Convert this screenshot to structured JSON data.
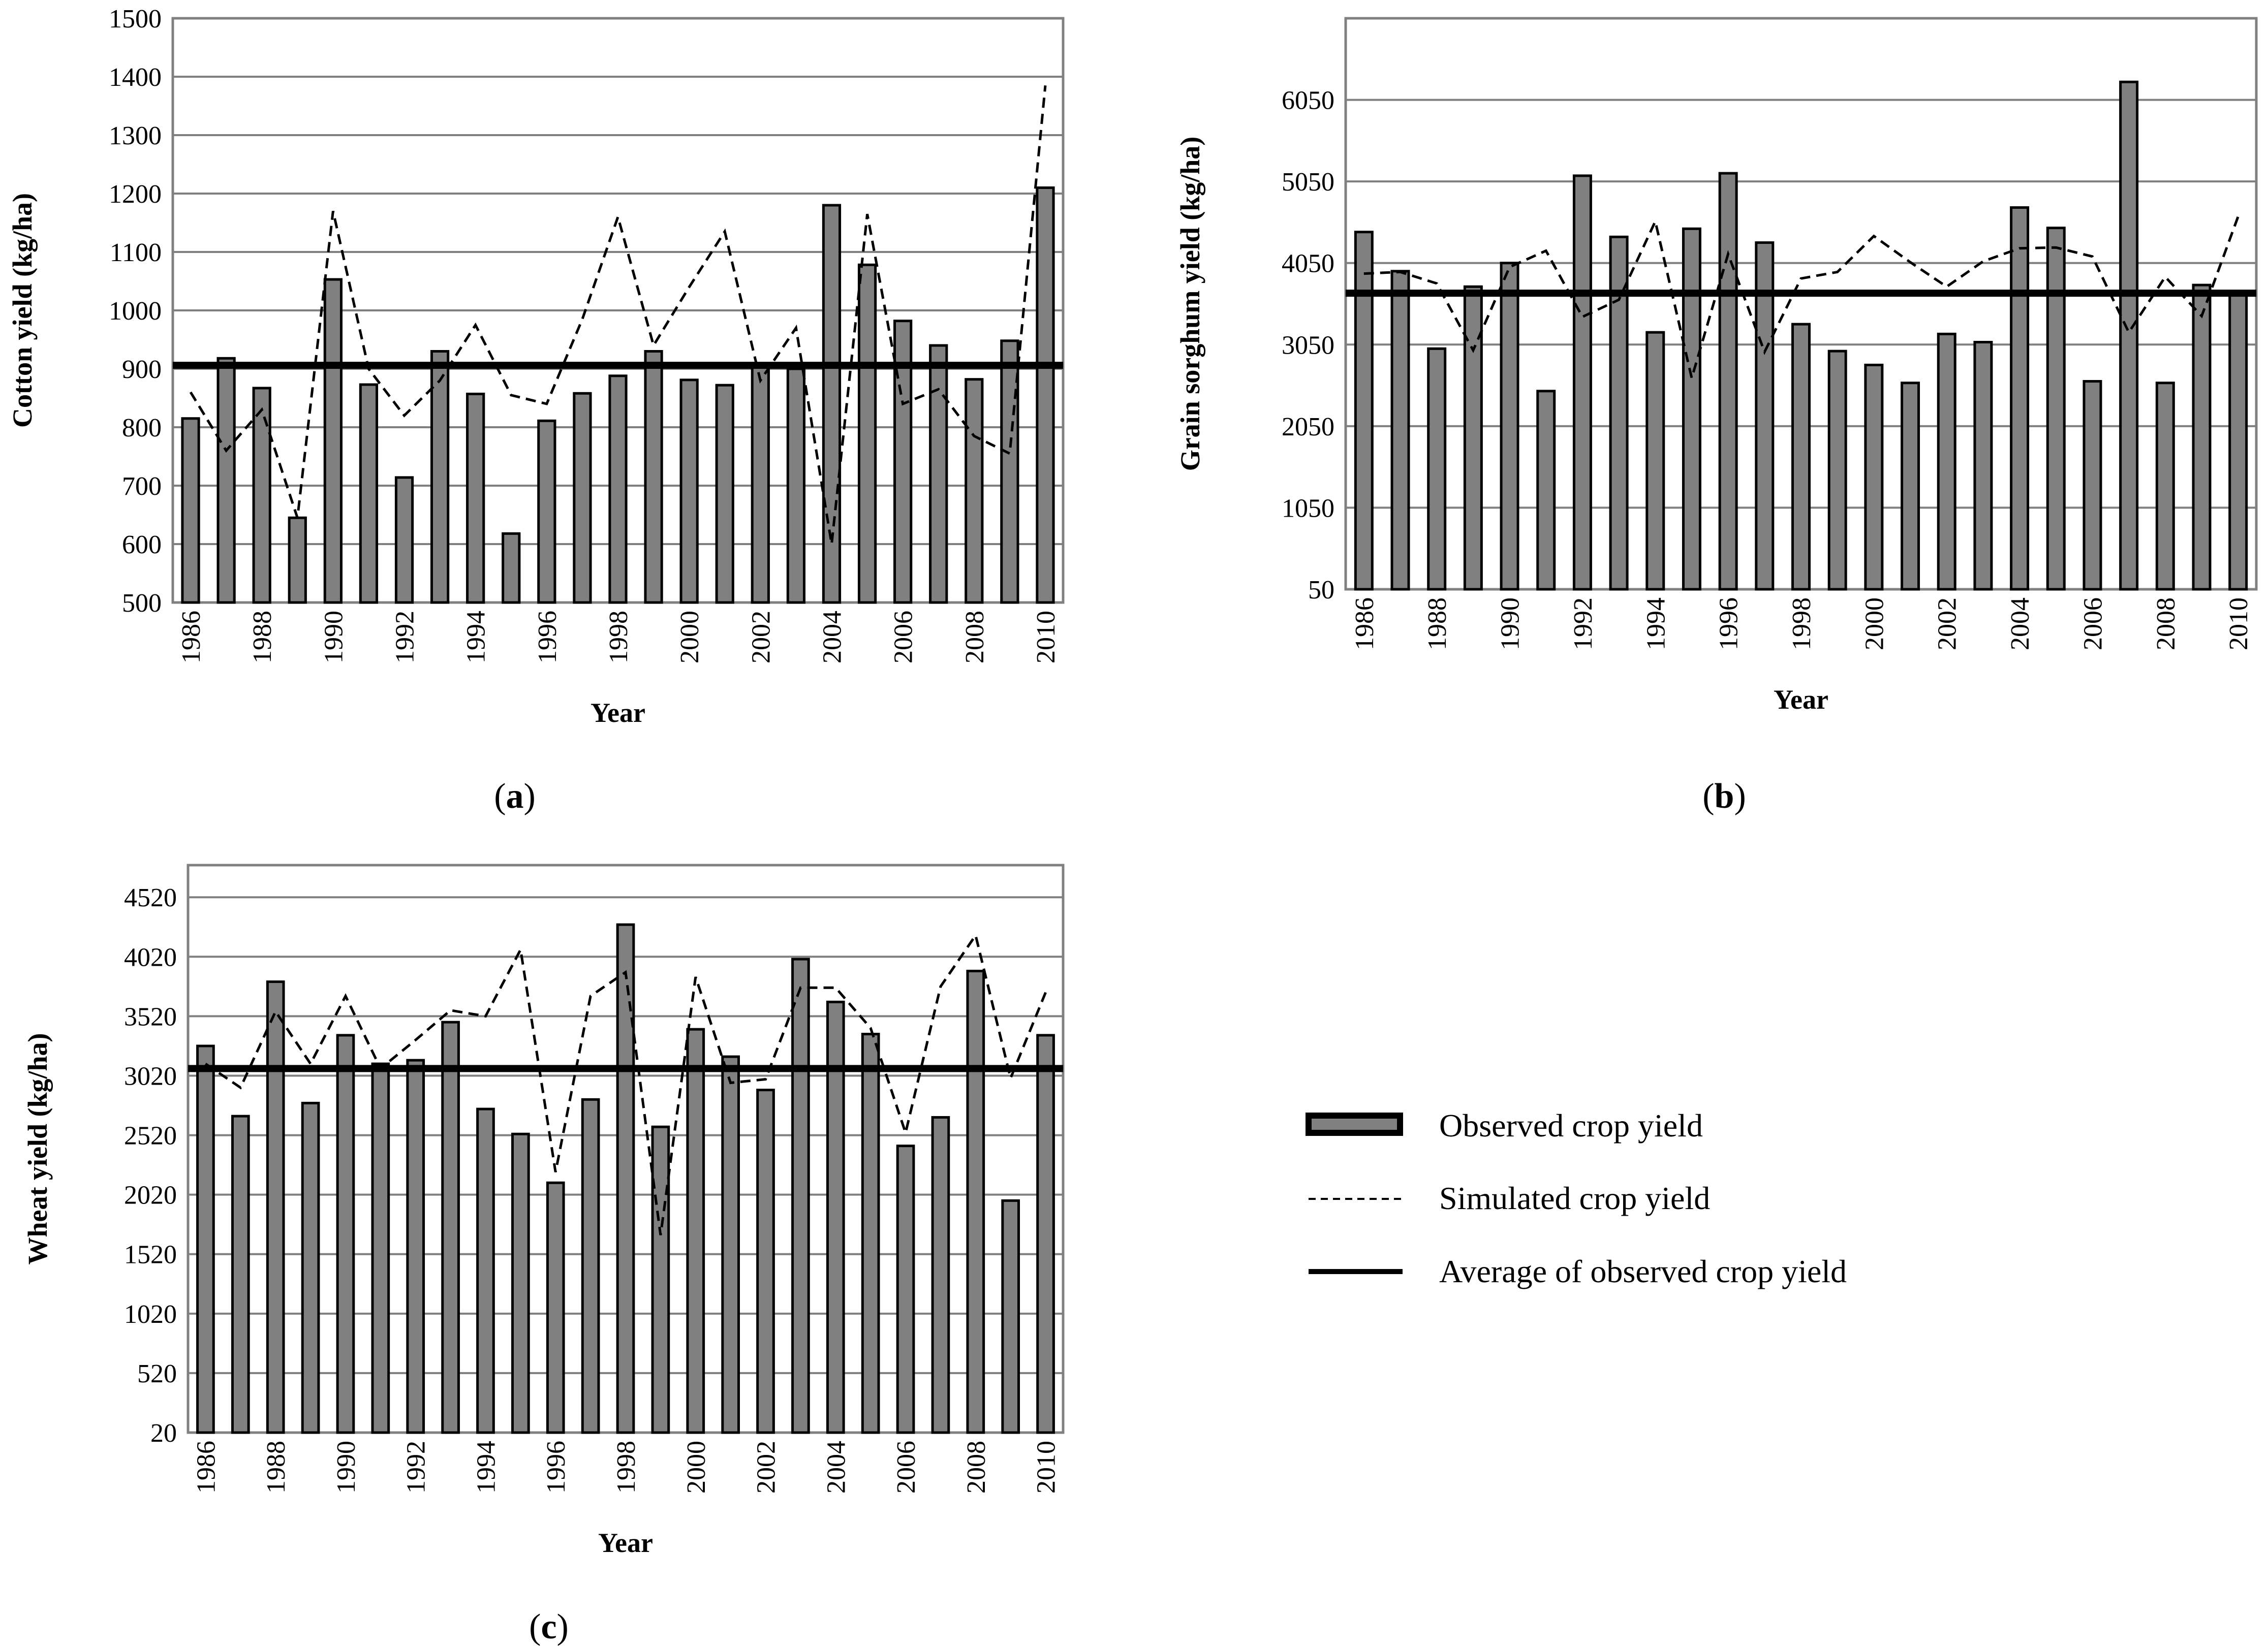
{
  "colors": {
    "bar_fill": "#808080",
    "bar_stroke": "#000000",
    "grid": "#808080",
    "frame": "#808080",
    "simulated": "#000000",
    "average": "#000000"
  },
  "legend": {
    "observed": "Observed crop yield",
    "simulated": "Simulated crop yield",
    "average": "Average of observed crop yield"
  },
  "chart_data": [
    {
      "id": "a",
      "type": "bar",
      "panel_label": "a",
      "xlabel": "Year",
      "ylabel": "Cotton yield (kg/ha)",
      "ylim": [
        500,
        1500
      ],
      "yticks": [
        500,
        600,
        700,
        800,
        900,
        1000,
        1100,
        1200,
        1300,
        1400,
        1500
      ],
      "xtick_labels": [
        "1986",
        "1988",
        "1990",
        "1992",
        "1994",
        "1996",
        "1998",
        "2000",
        "2002",
        "2004",
        "2006",
        "2008",
        "2010"
      ],
      "categories": [
        1986,
        1987,
        1988,
        1989,
        1990,
        1991,
        1992,
        1993,
        1994,
        1995,
        1996,
        1997,
        1998,
        1999,
        2000,
        2001,
        2002,
        2003,
        2004,
        2005,
        2006,
        2007,
        2008,
        2009,
        2010
      ],
      "series": [
        {
          "name": "Observed crop yield",
          "type": "bar",
          "values": [
            815,
            918,
            867,
            645,
            1053,
            873,
            714,
            930,
            857,
            618,
            811,
            858,
            888,
            930,
            881,
            872,
            903,
            900,
            1180,
            1078,
            982,
            940,
            882,
            948,
            1210
          ]
        },
        {
          "name": "Simulated crop yield",
          "type": "line",
          "style": "dashed",
          "values": [
            860,
            760,
            830,
            645,
            1170,
            900,
            820,
            880,
            975,
            855,
            840,
            985,
            1160,
            940,
            1040,
            1135,
            880,
            970,
            600,
            1165,
            840,
            865,
            785,
            755,
            1385
          ]
        },
        {
          "name": "Average of observed crop yield",
          "type": "hline",
          "value": 906
        }
      ]
    },
    {
      "id": "b",
      "type": "bar",
      "panel_label": "b",
      "xlabel": "Year",
      "ylabel": "Grain sorghum yield (kg/ha)",
      "ylim": [
        50,
        7050
      ],
      "yticks": [
        50,
        1050,
        2050,
        3050,
        4050,
        5050,
        6050
      ],
      "xtick_labels": [
        "1986",
        "1988",
        "1990",
        "1992",
        "1994",
        "1996",
        "1998",
        "2000",
        "2002",
        "2004",
        "2006",
        "2008",
        "2010"
      ],
      "categories": [
        1986,
        1987,
        1988,
        1989,
        1990,
        1991,
        1992,
        1993,
        1994,
        1995,
        1996,
        1997,
        1998,
        1999,
        2000,
        2001,
        2002,
        2003,
        2004,
        2005,
        2006,
        2007,
        2008,
        2009,
        2010
      ],
      "series": [
        {
          "name": "Observed crop yield",
          "type": "bar",
          "values": [
            4430,
            3950,
            3000,
            3760,
            4050,
            2480,
            5120,
            4370,
            3200,
            4470,
            5150,
            4300,
            3300,
            2970,
            2800,
            2580,
            3180,
            3080,
            4730,
            4480,
            2600,
            6270,
            2580,
            3780,
            3690
          ]
        },
        {
          "name": "Simulated crop yield",
          "type": "line",
          "style": "dashed",
          "values": [
            3920,
            3940,
            3800,
            2980,
            4000,
            4200,
            3390,
            3600,
            4560,
            2640,
            4160,
            2960,
            3860,
            3940,
            4380,
            4060,
            3760,
            4070,
            4230,
            4240,
            4130,
            3200,
            3880,
            3400,
            4620
          ]
        },
        {
          "name": "Average of observed crop yield",
          "type": "hline",
          "value": 3680
        }
      ]
    },
    {
      "id": "c",
      "type": "bar",
      "panel_label": "c",
      "xlabel": "Year",
      "ylabel": "Wheat yield (kg/ha)",
      "ylim": [
        20,
        4790
      ],
      "yticks": [
        20,
        520,
        1020,
        1520,
        2020,
        2520,
        3020,
        3520,
        4020,
        4520
      ],
      "xtick_labels": [
        "1986",
        "1988",
        "1990",
        "1992",
        "1994",
        "1996",
        "1998",
        "2000",
        "2002",
        "2004",
        "2006",
        "2008",
        "2010"
      ],
      "categories": [
        1986,
        1987,
        1988,
        1989,
        1990,
        1991,
        1992,
        1993,
        1994,
        1995,
        1996,
        1997,
        1998,
        1999,
        2000,
        2001,
        2002,
        2003,
        2004,
        2005,
        2006,
        2007,
        2008,
        2009,
        2010
      ],
      "series": [
        {
          "name": "Observed crop yield",
          "type": "bar",
          "values": [
            3270,
            2680,
            3810,
            2790,
            3360,
            3120,
            3150,
            3470,
            2740,
            2530,
            2120,
            2820,
            4290,
            2590,
            3410,
            3180,
            2900,
            4000,
            3640,
            3370,
            2430,
            2670,
            3900,
            1970,
            3360
          ]
        },
        {
          "name": "Simulated crop yield",
          "type": "line",
          "style": "dashed",
          "values": [
            3120,
            2920,
            3560,
            3120,
            3690,
            3080,
            3320,
            3570,
            3520,
            4080,
            2210,
            3690,
            3890,
            1680,
            3850,
            2960,
            2990,
            3760,
            3760,
            3420,
            2540,
            3770,
            4200,
            3000,
            3720
          ]
        },
        {
          "name": "Average of observed crop yield",
          "type": "hline",
          "value": 3080
        }
      ]
    }
  ]
}
